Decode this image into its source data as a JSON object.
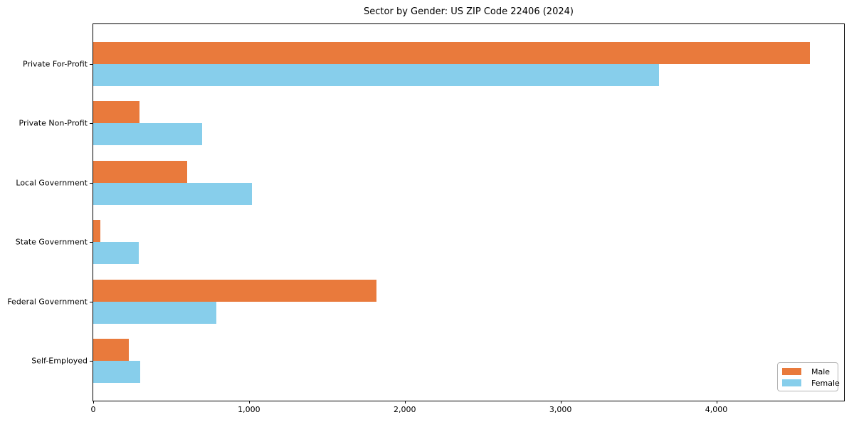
{
  "chart_data": {
    "type": "bar",
    "orientation": "horizontal",
    "title": "Sector by Gender: US ZIP Code 22406 (2024)",
    "categories": [
      "Private For-Profit",
      "Private Non-Profit",
      "Local Government",
      "State Government",
      "Federal Government",
      "Self-Employed"
    ],
    "series": [
      {
        "name": "Male",
        "color": "#e97a3c",
        "values": [
          4600,
          295,
          605,
          45,
          1820,
          230
        ]
      },
      {
        "name": "Female",
        "color": "#87ceeb",
        "values": [
          3630,
          700,
          1020,
          290,
          790,
          300
        ]
      }
    ],
    "x_axis": {
      "ticks": [
        0,
        1000,
        2000,
        3000,
        4000
      ],
      "tick_labels": [
        "0",
        "1,000",
        "2,000",
        "3,000",
        "4,000"
      ],
      "lim": [
        0,
        4820
      ]
    },
    "grid": false,
    "legend": {
      "position": "lower right"
    }
  }
}
